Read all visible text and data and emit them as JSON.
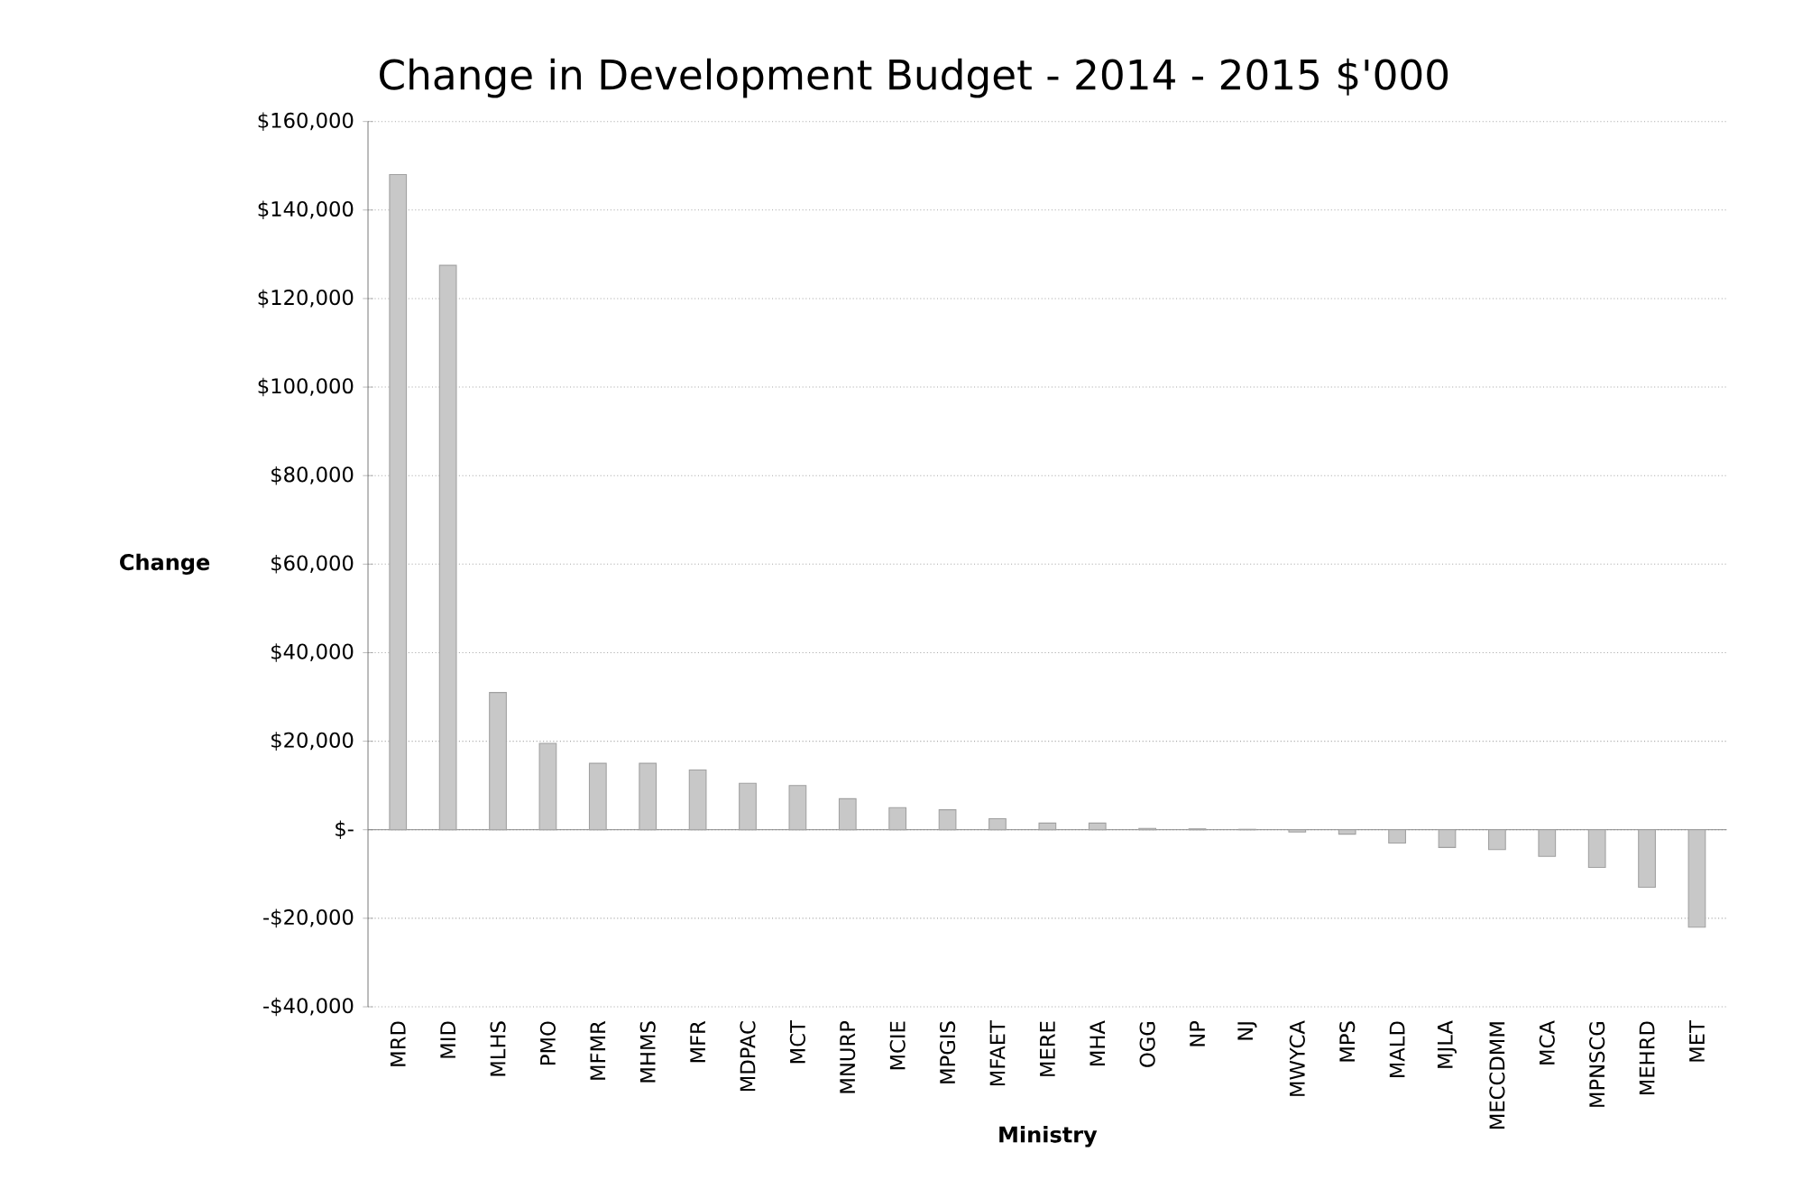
{
  "chart_data": {
    "type": "bar",
    "title": "Change in Development Budget - 2014 - 2015 $'000",
    "xlabel": "Ministry",
    "ylabel": "Change",
    "categories": [
      "MRD",
      "MID",
      "MLHS",
      "PMO",
      "MFMR",
      "MHMS",
      "MFR",
      "MDPAC",
      "MCT",
      "MNURP",
      "MCIE",
      "MPGIS",
      "MFAET",
      "MERE",
      "MHA",
      "OGG",
      "NP",
      "NJ",
      "MWYCA",
      "MPS",
      "MALD",
      "MJLA",
      "MECCDMM",
      "MCA",
      "MPNSCG",
      "MEHRD",
      "MET"
    ],
    "values": [
      148000,
      127500,
      31000,
      19500,
      15000,
      15000,
      13500,
      10500,
      10000,
      7000,
      5000,
      4500,
      2500,
      1500,
      1500,
      300,
      200,
      100,
      -500,
      -1000,
      -3000,
      -4000,
      -4500,
      -6000,
      -8500,
      -13000,
      -22000
    ],
    "color": "#c8c8c8",
    "ylim": [
      -40000,
      160000
    ],
    "yticks": [
      {
        "value": -40000,
        "label": "-$40,000"
      },
      {
        "value": -20000,
        "label": "-$20,000"
      },
      {
        "value": 0,
        "label": "$-"
      },
      {
        "value": 20000,
        "label": "$20,000"
      },
      {
        "value": 40000,
        "label": "$40,000"
      },
      {
        "value": 60000,
        "label": "$60,000"
      },
      {
        "value": 80000,
        "label": "$80,000"
      },
      {
        "value": 100000,
        "label": "$100,000"
      },
      {
        "value": 120000,
        "label": "$120,000"
      },
      {
        "value": 140000,
        "label": "$140,000"
      },
      {
        "value": 160000,
        "label": "$160,000"
      }
    ],
    "grid": "y"
  }
}
